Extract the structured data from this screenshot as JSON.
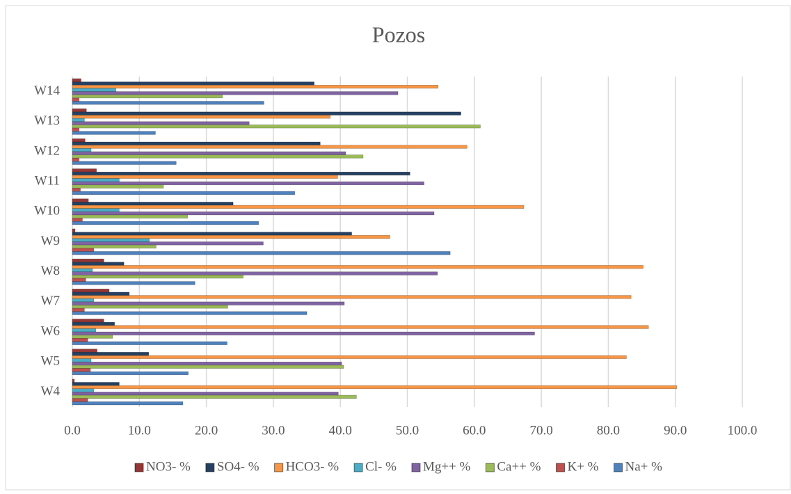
{
  "chart_data": {
    "type": "bar",
    "orientation": "horizontal",
    "title": "Pozos",
    "categories": [
      "W4",
      "W5",
      "W6",
      "W7",
      "W8",
      "W9",
      "W10",
      "W11",
      "W12",
      "W13",
      "W14"
    ],
    "series": [
      {
        "name": "NO3- %",
        "color": "#953735",
        "values": [
          0.3,
          3.7,
          4.7,
          5.5,
          4.7,
          0.4,
          2.4,
          3.6,
          1.9,
          2.1,
          1.3
        ]
      },
      {
        "name": "SO4- %",
        "color": "#254061",
        "values": [
          7.0,
          11.4,
          6.3,
          8.5,
          7.7,
          41.7,
          24.0,
          50.4,
          37.0,
          58.0,
          36.1
        ]
      },
      {
        "name": "HCO3- %",
        "color": "#f79646",
        "values": [
          90.2,
          82.7,
          86.0,
          83.4,
          85.2,
          47.4,
          67.4,
          39.6,
          58.9,
          38.5,
          54.6
        ]
      },
      {
        "name": "Cl- %",
        "color": "#4bacc6",
        "values": [
          3.2,
          2.8,
          3.5,
          3.2,
          3.0,
          11.5,
          7.0,
          7.0,
          2.8,
          1.8,
          6.5
        ]
      },
      {
        "name": "Mg++ %",
        "color": "#8064a2",
        "values": [
          39.7,
          40.2,
          69.0,
          40.6,
          54.5,
          28.5,
          54.0,
          52.5,
          40.8,
          26.4,
          48.6
        ]
      },
      {
        "name": "Ca++ %",
        "color": "#9bbb59",
        "values": [
          42.4,
          40.5,
          6.0,
          23.2,
          25.5,
          12.5,
          17.2,
          13.6,
          43.4,
          60.9,
          22.4
        ]
      },
      {
        "name": "K+ %",
        "color": "#c0504d",
        "values": [
          2.3,
          2.7,
          2.3,
          1.8,
          2.0,
          3.2,
          1.5,
          1.2,
          1.0,
          1.0,
          1.0
        ]
      },
      {
        "name": "Na+ %",
        "color": "#4f81bd",
        "values": [
          16.5,
          17.3,
          23.1,
          35.0,
          18.3,
          56.4,
          27.8,
          33.2,
          15.5,
          12.4,
          28.6
        ]
      }
    ],
    "xlim": [
      0,
      100
    ],
    "xticks": [
      {
        "value": 0,
        "label": "0.0"
      },
      {
        "value": 10,
        "label": "10.0"
      },
      {
        "value": 20,
        "label": "20.0"
      },
      {
        "value": 30,
        "label": "30.0"
      },
      {
        "value": 40,
        "label": "40.0"
      },
      {
        "value": 50,
        "label": "50.0"
      },
      {
        "value": 60,
        "label": "60.0"
      },
      {
        "value": 70,
        "label": "70.0"
      },
      {
        "value": 80,
        "label": "80.0"
      },
      {
        "value": 90,
        "label": "90.0"
      },
      {
        "value": 100,
        "label": "100.0"
      }
    ],
    "grid": true,
    "legend": "bottom"
  }
}
